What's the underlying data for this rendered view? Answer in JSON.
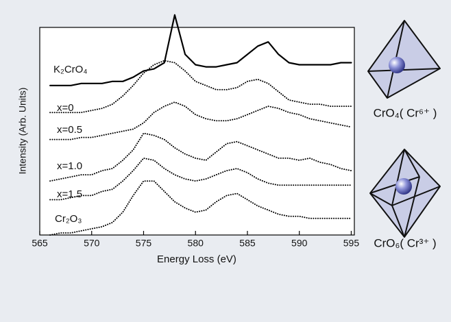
{
  "chart_data": {
    "type": "line",
    "x_label": "Energy Loss (eV)",
    "y_label": "Intensity (Arb. Units)",
    "xlim": [
      565,
      595.3
    ],
    "xticks": [
      565,
      570,
      575,
      580,
      585,
      590,
      595
    ],
    "ylim": [
      0,
      100
    ],
    "x": [
      566,
      567,
      568,
      569,
      570,
      571,
      572,
      573,
      574,
      575,
      576,
      577,
      578,
      579,
      580,
      581,
      582,
      583,
      584,
      585,
      586,
      587,
      588,
      589,
      590,
      591,
      592,
      593,
      594,
      595
    ],
    "series": [
      {
        "name": "K₂CrO₄",
        "color": "#000000",
        "style": "solid",
        "values": [
          72,
          72,
          72,
          73,
          73,
          73,
          74,
          74,
          76,
          79,
          80,
          83,
          106,
          87,
          82,
          81,
          81,
          82,
          83,
          87,
          91,
          93,
          87,
          83,
          82,
          82,
          82,
          82,
          83,
          83
        ]
      },
      {
        "name": "x=0",
        "color": "#000000",
        "style": "dotted",
        "values": [
          59,
          59,
          59,
          59,
          60,
          61,
          63,
          67,
          72,
          78,
          82,
          84,
          83,
          79,
          74,
          72,
          70,
          70,
          71,
          74,
          75,
          73,
          69,
          65,
          64,
          63,
          63,
          62,
          62,
          62
        ]
      },
      {
        "name": "x=0.5",
        "color": "#000000",
        "style": "dotted",
        "values": [
          46,
          46,
          46,
          47,
          47,
          48,
          49,
          50,
          51,
          54,
          59,
          62,
          64,
          62,
          58,
          56,
          55,
          55,
          56,
          58,
          60,
          62,
          61,
          59,
          58,
          56,
          55,
          54,
          53,
          52
        ]
      },
      {
        "name": "x=1.0",
        "color": "#000000",
        "style": "dotted",
        "values": [
          26,
          27,
          28,
          29,
          29,
          31,
          32,
          36,
          41,
          49,
          48,
          46,
          42,
          39,
          37,
          36,
          40,
          44,
          45,
          43,
          41,
          39,
          37,
          37,
          36,
          37,
          35,
          34,
          32,
          31
        ]
      },
      {
        "name": "x=1.5",
        "color": "#000000",
        "style": "dotted",
        "values": [
          17,
          17,
          18,
          19,
          19,
          21,
          22,
          26,
          31,
          37,
          36,
          32,
          29,
          27,
          26,
          27,
          29,
          31,
          32,
          30,
          27,
          25,
          24,
          24,
          24,
          24,
          24,
          24,
          24,
          24
        ]
      },
      {
        "name": "Cr₂O₃",
        "color": "#000000",
        "style": "dotted",
        "values": [
          0,
          1,
          1,
          2,
          3,
          4,
          6,
          11,
          19,
          26,
          26,
          21,
          16,
          13,
          11,
          12,
          16,
          19,
          20,
          17,
          14,
          12,
          10,
          9,
          9,
          8,
          8,
          8,
          8,
          8
        ]
      }
    ],
    "annotations": [
      "CrO₄( Cr⁶⁺ )",
      "CrO₆( Cr³⁺ )"
    ]
  }
}
